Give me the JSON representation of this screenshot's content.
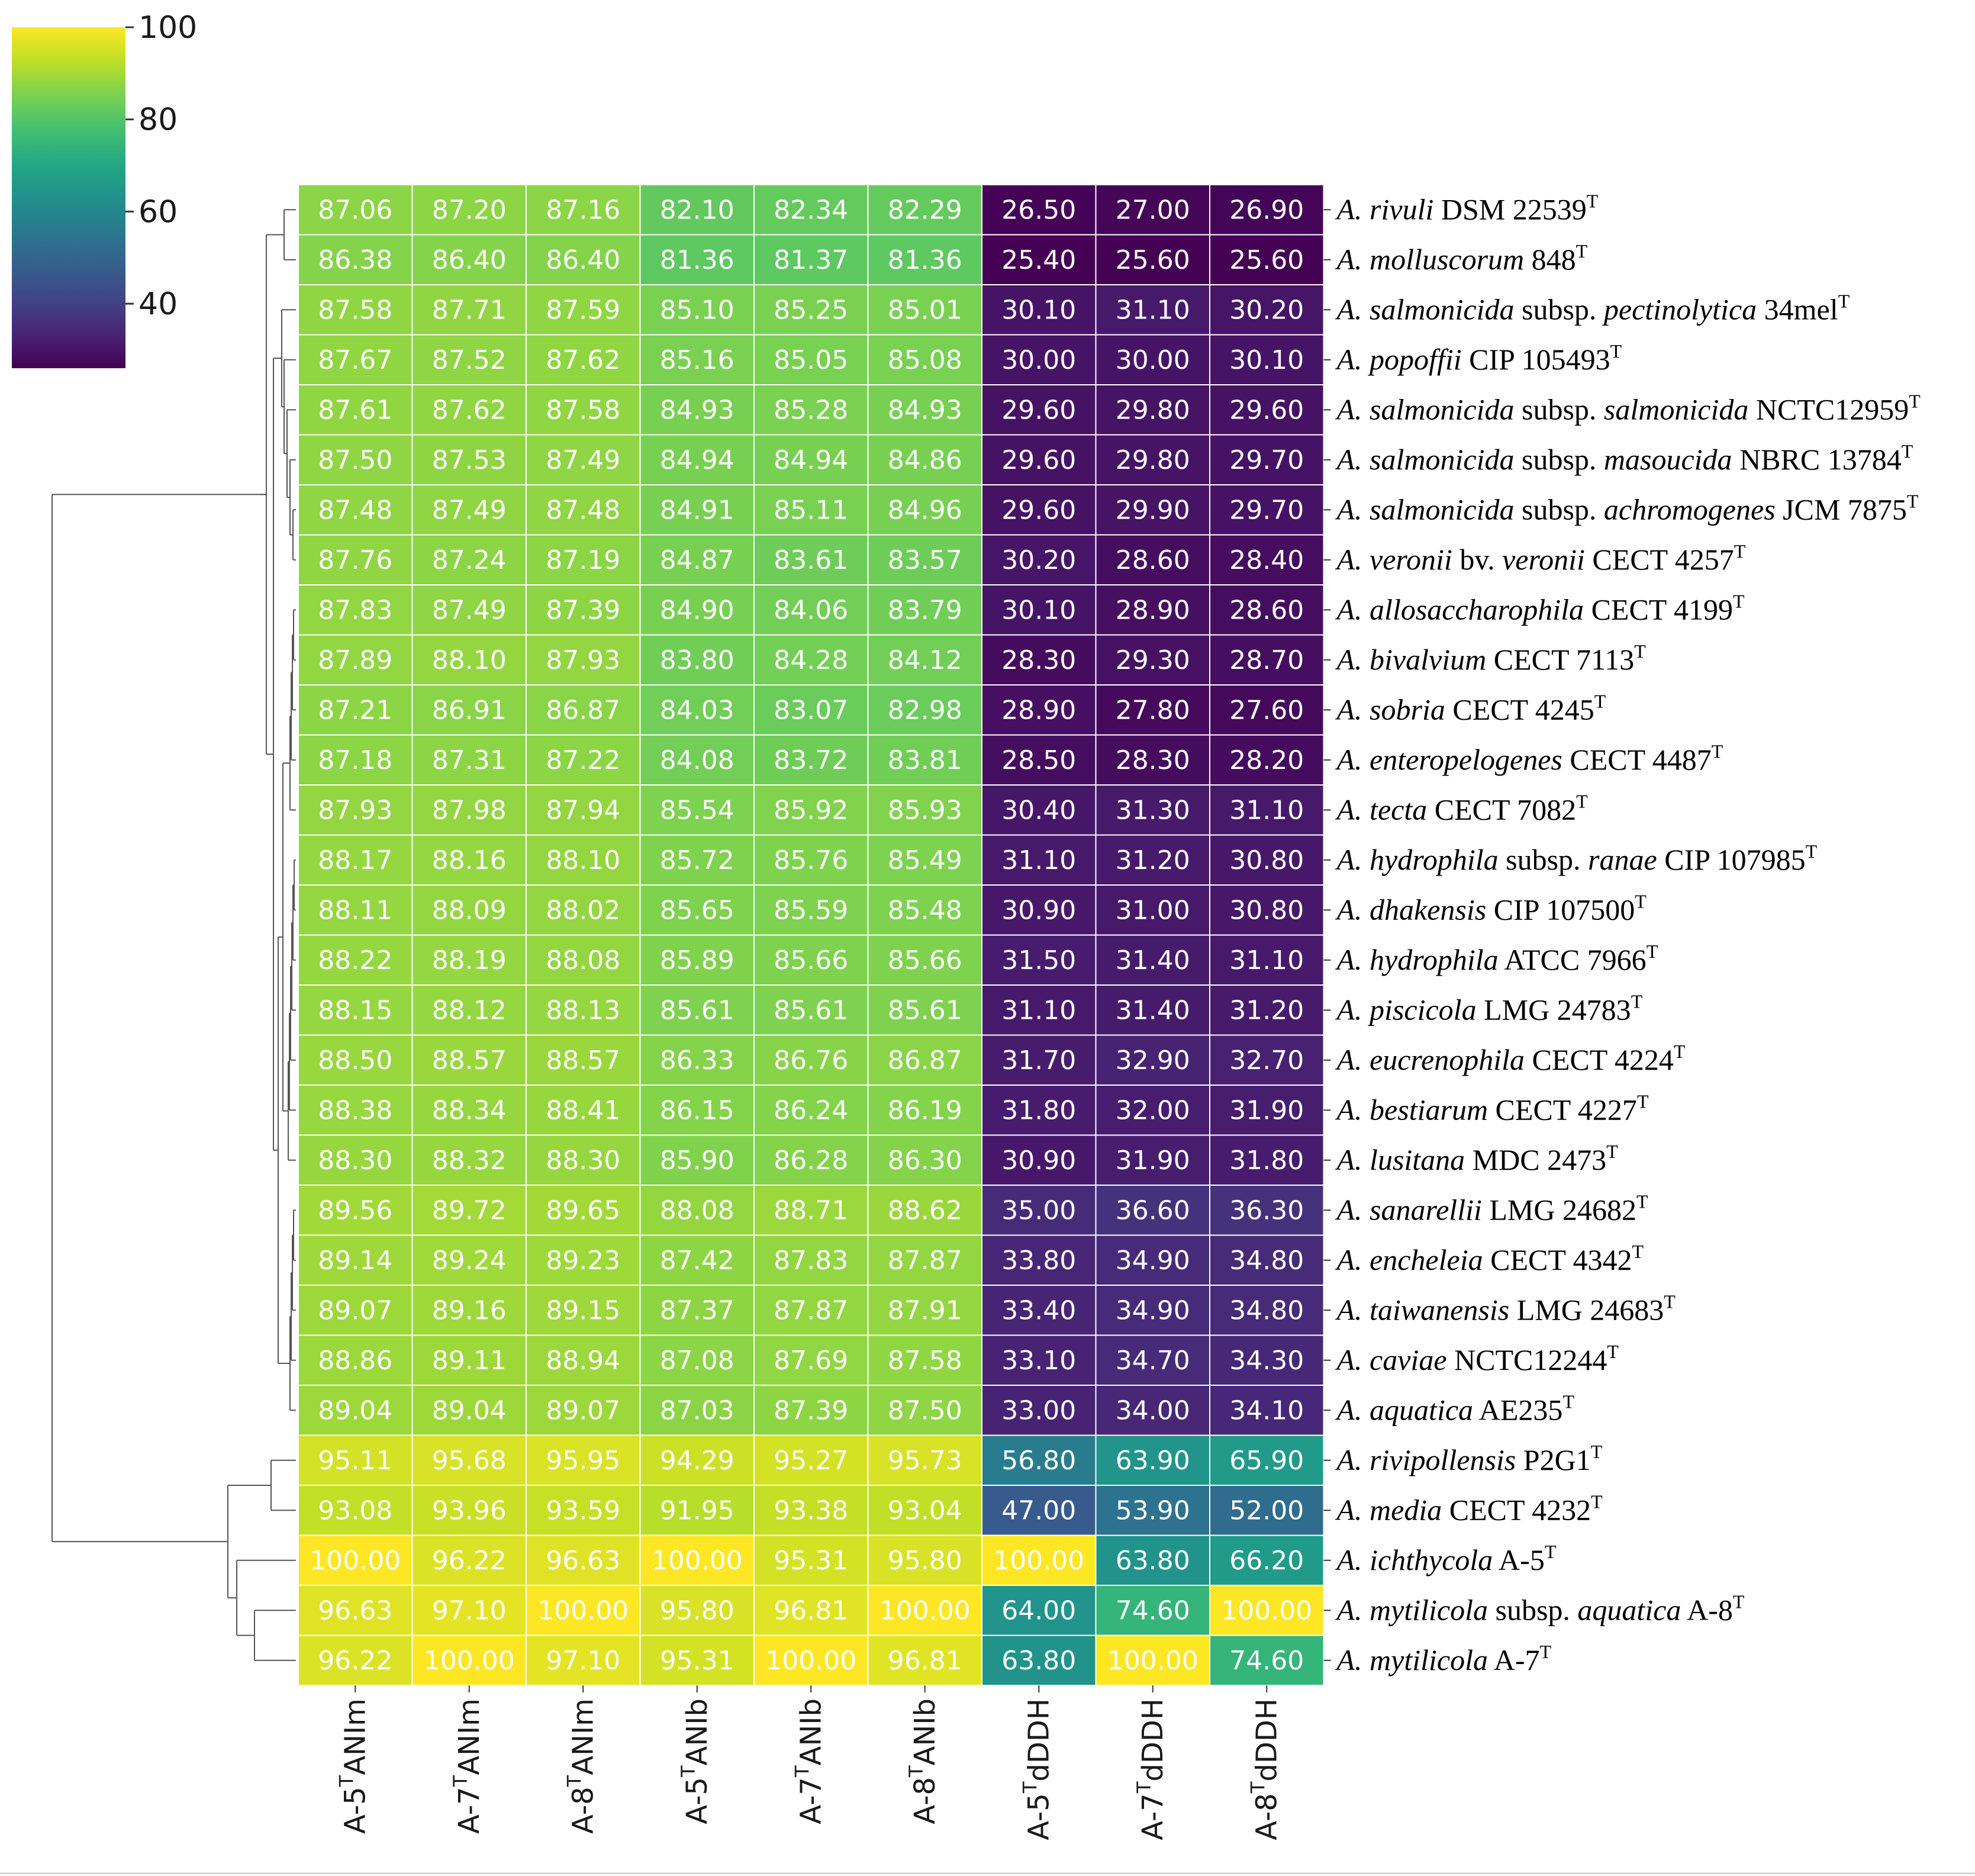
{
  "chart_data": {
    "type": "heatmap",
    "title": "",
    "colormap": "viridis",
    "value_range": [
      26,
      100
    ],
    "colorbar_ticks": [
      "100",
      "80",
      "60",
      "40"
    ],
    "colorbar_tick_values": [
      100,
      80,
      60,
      40
    ],
    "columns": [
      {
        "prefix": "A-5",
        "sup": "T",
        "suffix": "ANIm"
      },
      {
        "prefix": "A-7",
        "sup": "T",
        "suffix": "ANIm"
      },
      {
        "prefix": "A-8",
        "sup": "T",
        "suffix": "ANIm"
      },
      {
        "prefix": "A-5",
        "sup": "T",
        "suffix": "ANIb"
      },
      {
        "prefix": "A-7",
        "sup": "T",
        "suffix": "ANIb"
      },
      {
        "prefix": "A-8",
        "sup": "T",
        "suffix": "ANIb"
      },
      {
        "prefix": "A-5",
        "sup": "T",
        "suffix": "dDDH"
      },
      {
        "prefix": "A-7",
        "sup": "T",
        "suffix": "dDDH"
      },
      {
        "prefix": "A-8",
        "sup": "T",
        "suffix": "dDDH"
      }
    ],
    "rows": [
      {
        "label": [
          [
            "A. ",
            "i"
          ],
          [
            "rivuli",
            "i"
          ],
          [
            " DSM 22539",
            "n"
          ],
          [
            "T",
            "s"
          ]
        ],
        "values": [
          "87.06",
          "87.20",
          "87.16",
          "82.10",
          "82.34",
          "82.29",
          "26.50",
          "27.00",
          "26.90"
        ]
      },
      {
        "label": [
          [
            "A. ",
            "i"
          ],
          [
            "molluscorum",
            "i"
          ],
          [
            " 848",
            "n"
          ],
          [
            "T",
            "s"
          ]
        ],
        "values": [
          "86.38",
          "86.40",
          "86.40",
          "81.36",
          "81.37",
          "81.36",
          "25.40",
          "25.60",
          "25.60"
        ]
      },
      {
        "label": [
          [
            "A. ",
            "i"
          ],
          [
            "salmonicida",
            "i"
          ],
          [
            " subsp. ",
            "n"
          ],
          [
            "pectinolytica",
            "i"
          ],
          [
            " 34mel",
            "n"
          ],
          [
            "T",
            "s"
          ]
        ],
        "values": [
          "87.58",
          "87.71",
          "87.59",
          "85.10",
          "85.25",
          "85.01",
          "30.10",
          "31.10",
          "30.20"
        ]
      },
      {
        "label": [
          [
            "A. ",
            "i"
          ],
          [
            "popoffii",
            "i"
          ],
          [
            " CIP 105493",
            "n"
          ],
          [
            "T",
            "s"
          ]
        ],
        "values": [
          "87.67",
          "87.52",
          "87.62",
          "85.16",
          "85.05",
          "85.08",
          "30.00",
          "30.00",
          "30.10"
        ]
      },
      {
        "label": [
          [
            "A. ",
            "i"
          ],
          [
            "salmonicida",
            "i"
          ],
          [
            " subsp. ",
            "n"
          ],
          [
            "salmonicida",
            "i"
          ],
          [
            " NCTC12959",
            "n"
          ],
          [
            "T",
            "s"
          ]
        ],
        "values": [
          "87.61",
          "87.62",
          "87.58",
          "84.93",
          "85.28",
          "84.93",
          "29.60",
          "29.80",
          "29.60"
        ]
      },
      {
        "label": [
          [
            "A. ",
            "i"
          ],
          [
            "salmonicida",
            "i"
          ],
          [
            " subsp. ",
            "n"
          ],
          [
            "masoucida",
            "i"
          ],
          [
            " NBRC 13784",
            "n"
          ],
          [
            "T",
            "s"
          ]
        ],
        "values": [
          "87.50",
          "87.53",
          "87.49",
          "84.94",
          "84.94",
          "84.86",
          "29.60",
          "29.80",
          "29.70"
        ]
      },
      {
        "label": [
          [
            "A. ",
            "i"
          ],
          [
            "salmonicida",
            "i"
          ],
          [
            " subsp. ",
            "n"
          ],
          [
            "achromogenes",
            "i"
          ],
          [
            " JCM 7875",
            "n"
          ],
          [
            "T",
            "s"
          ]
        ],
        "values": [
          "87.48",
          "87.49",
          "87.48",
          "84.91",
          "85.11",
          "84.96",
          "29.60",
          "29.90",
          "29.70"
        ]
      },
      {
        "label": [
          [
            "A. ",
            "i"
          ],
          [
            "veronii",
            "i"
          ],
          [
            " bv. ",
            "n"
          ],
          [
            "veronii",
            "i"
          ],
          [
            " CECT 4257",
            "n"
          ],
          [
            "T",
            "s"
          ]
        ],
        "values": [
          "87.76",
          "87.24",
          "87.19",
          "84.87",
          "83.61",
          "83.57",
          "30.20",
          "28.60",
          "28.40"
        ]
      },
      {
        "label": [
          [
            "A. ",
            "i"
          ],
          [
            "allosaccharophila",
            "i"
          ],
          [
            " CECT 4199",
            "n"
          ],
          [
            "T",
            "s"
          ]
        ],
        "values": [
          "87.83",
          "87.49",
          "87.39",
          "84.90",
          "84.06",
          "83.79",
          "30.10",
          "28.90",
          "28.60"
        ]
      },
      {
        "label": [
          [
            "A. ",
            "i"
          ],
          [
            "bivalvium",
            "i"
          ],
          [
            " CECT 7113",
            "n"
          ],
          [
            "T",
            "s"
          ]
        ],
        "values": [
          "87.89",
          "88.10",
          "87.93",
          "83.80",
          "84.28",
          "84.12",
          "28.30",
          "29.30",
          "28.70"
        ]
      },
      {
        "label": [
          [
            "A. ",
            "i"
          ],
          [
            "sobria",
            "i"
          ],
          [
            " CECT 4245",
            "n"
          ],
          [
            "T",
            "s"
          ]
        ],
        "values": [
          "87.21",
          "86.91",
          "86.87",
          "84.03",
          "83.07",
          "82.98",
          "28.90",
          "27.80",
          "27.60"
        ]
      },
      {
        "label": [
          [
            "A. ",
            "i"
          ],
          [
            "enteropelogenes",
            "i"
          ],
          [
            " CECT 4487",
            "n"
          ],
          [
            "T",
            "s"
          ]
        ],
        "values": [
          "87.18",
          "87.31",
          "87.22",
          "84.08",
          "83.72",
          "83.81",
          "28.50",
          "28.30",
          "28.20"
        ]
      },
      {
        "label": [
          [
            "A. ",
            "i"
          ],
          [
            "tecta",
            "i"
          ],
          [
            " CECT 7082",
            "n"
          ],
          [
            "T",
            "s"
          ]
        ],
        "values": [
          "87.93",
          "87.98",
          "87.94",
          "85.54",
          "85.92",
          "85.93",
          "30.40",
          "31.30",
          "31.10"
        ]
      },
      {
        "label": [
          [
            "A. ",
            "i"
          ],
          [
            "hydrophila",
            "i"
          ],
          [
            " subsp. ",
            "n"
          ],
          [
            "ranae",
            "i"
          ],
          [
            " CIP 107985",
            "n"
          ],
          [
            "T",
            "s"
          ]
        ],
        "values": [
          "88.17",
          "88.16",
          "88.10",
          "85.72",
          "85.76",
          "85.49",
          "31.10",
          "31.20",
          "30.80"
        ]
      },
      {
        "label": [
          [
            "A. ",
            "i"
          ],
          [
            "dhakensis",
            "i"
          ],
          [
            " CIP 107500",
            "n"
          ],
          [
            "T",
            "s"
          ]
        ],
        "values": [
          "88.11",
          "88.09",
          "88.02",
          "85.65",
          "85.59",
          "85.48",
          "30.90",
          "31.00",
          "30.80"
        ]
      },
      {
        "label": [
          [
            "A. ",
            "i"
          ],
          [
            "hydrophila",
            "i"
          ],
          [
            " ATCC 7966",
            "n"
          ],
          [
            "T",
            "s"
          ]
        ],
        "values": [
          "88.22",
          "88.19",
          "88.08",
          "85.89",
          "85.66",
          "85.66",
          "31.50",
          "31.40",
          "31.10"
        ]
      },
      {
        "label": [
          [
            "A. ",
            "i"
          ],
          [
            "piscicola",
            "i"
          ],
          [
            " LMG 24783",
            "n"
          ],
          [
            "T",
            "s"
          ]
        ],
        "values": [
          "88.15",
          "88.12",
          "88.13",
          "85.61",
          "85.61",
          "85.61",
          "31.10",
          "31.40",
          "31.20"
        ]
      },
      {
        "label": [
          [
            "A. ",
            "i"
          ],
          [
            "eucrenophila",
            "i"
          ],
          [
            " CECT 4224",
            "n"
          ],
          [
            "T",
            "s"
          ]
        ],
        "values": [
          "88.50",
          "88.57",
          "88.57",
          "86.33",
          "86.76",
          "86.87",
          "31.70",
          "32.90",
          "32.70"
        ]
      },
      {
        "label": [
          [
            "A. ",
            "i"
          ],
          [
            "bestiarum",
            "i"
          ],
          [
            " CECT 4227",
            "n"
          ],
          [
            "T",
            "s"
          ]
        ],
        "values": [
          "88.38",
          "88.34",
          "88.41",
          "86.15",
          "86.24",
          "86.19",
          "31.80",
          "32.00",
          "31.90"
        ]
      },
      {
        "label": [
          [
            "A. ",
            "i"
          ],
          [
            "lusitana",
            "i"
          ],
          [
            " MDC 2473",
            "n"
          ],
          [
            "T",
            "s"
          ]
        ],
        "values": [
          "88.30",
          "88.32",
          "88.30",
          "85.90",
          "86.28",
          "86.30",
          "30.90",
          "31.90",
          "31.80"
        ]
      },
      {
        "label": [
          [
            "A. ",
            "i"
          ],
          [
            "sanarellii",
            "i"
          ],
          [
            " LMG 24682",
            "n"
          ],
          [
            "T",
            "s"
          ]
        ],
        "values": [
          "89.56",
          "89.72",
          "89.65",
          "88.08",
          "88.71",
          "88.62",
          "35.00",
          "36.60",
          "36.30"
        ]
      },
      {
        "label": [
          [
            "A. ",
            "i"
          ],
          [
            "encheleia",
            "i"
          ],
          [
            " CECT 4342",
            "n"
          ],
          [
            "T",
            "s"
          ]
        ],
        "values": [
          "89.14",
          "89.24",
          "89.23",
          "87.42",
          "87.83",
          "87.87",
          "33.80",
          "34.90",
          "34.80"
        ]
      },
      {
        "label": [
          [
            "A. ",
            "i"
          ],
          [
            "taiwanensis",
            "i"
          ],
          [
            " LMG 24683",
            "n"
          ],
          [
            "T",
            "s"
          ]
        ],
        "values": [
          "89.07",
          "89.16",
          "89.15",
          "87.37",
          "87.87",
          "87.91",
          "33.40",
          "34.90",
          "34.80"
        ]
      },
      {
        "label": [
          [
            "A. ",
            "i"
          ],
          [
            "caviae",
            "i"
          ],
          [
            " NCTC12244",
            "n"
          ],
          [
            "T",
            "s"
          ]
        ],
        "values": [
          "88.86",
          "89.11",
          "88.94",
          "87.08",
          "87.69",
          "87.58",
          "33.10",
          "34.70",
          "34.30"
        ]
      },
      {
        "label": [
          [
            "A. ",
            "i"
          ],
          [
            "aquatica",
            "i"
          ],
          [
            " AE235",
            "n"
          ],
          [
            "T",
            "s"
          ]
        ],
        "values": [
          "89.04",
          "89.04",
          "89.07",
          "87.03",
          "87.39",
          "87.50",
          "33.00",
          "34.00",
          "34.10"
        ]
      },
      {
        "label": [
          [
            "A. ",
            "i"
          ],
          [
            "rivipollensis",
            "i"
          ],
          [
            " P2G1",
            "n"
          ],
          [
            "T",
            "s"
          ]
        ],
        "values": [
          "95.11",
          "95.68",
          "95.95",
          "94.29",
          "95.27",
          "95.73",
          "56.80",
          "63.90",
          "65.90"
        ]
      },
      {
        "label": [
          [
            "A. ",
            "i"
          ],
          [
            "media",
            "i"
          ],
          [
            " CECT 4232",
            "n"
          ],
          [
            "T",
            "s"
          ]
        ],
        "values": [
          "93.08",
          "93.96",
          "93.59",
          "91.95",
          "93.38",
          "93.04",
          "47.00",
          "53.90",
          "52.00"
        ]
      },
      {
        "label": [
          [
            "A. ",
            "i"
          ],
          [
            "ichthycola",
            "i"
          ],
          [
            " A-5",
            "n"
          ],
          [
            "T",
            "s"
          ]
        ],
        "values": [
          "100.00",
          "96.22",
          "96.63",
          "100.00",
          "95.31",
          "95.80",
          "100.00",
          "63.80",
          "66.20"
        ]
      },
      {
        "label": [
          [
            "A. ",
            "i"
          ],
          [
            "mytilicola",
            "i"
          ],
          [
            " subsp. ",
            "n"
          ],
          [
            "aquatica",
            "i"
          ],
          [
            " A-8",
            "n"
          ],
          [
            "T",
            "s"
          ]
        ],
        "values": [
          "96.63",
          "97.10",
          "100.00",
          "95.80",
          "96.81",
          "100.00",
          "64.00",
          "74.60",
          "100.00"
        ]
      },
      {
        "label": [
          [
            "A. ",
            "i"
          ],
          [
            "mytilicola",
            "i"
          ],
          [
            " A-7",
            "n"
          ],
          [
            "T",
            "s"
          ]
        ],
        "values": [
          "96.22",
          "100.00",
          "97.10",
          "95.31",
          "100.00",
          "96.81",
          "63.80",
          "100.00",
          "74.60"
        ]
      }
    ],
    "dendrogram": {
      "type": "row_dendrogram",
      "leaf_order": "rows"
    }
  }
}
